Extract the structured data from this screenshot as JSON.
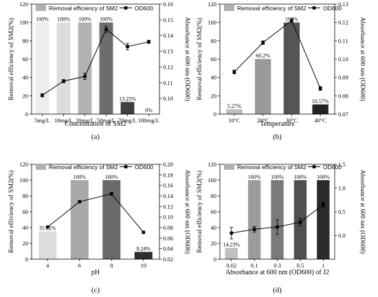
{
  "chart_data": [
    {
      "panel_label": "(a)",
      "type": "bar",
      "overlay_type": "line",
      "xlabel": "Concentration of SM2",
      "ylabel": "Removal efficiency of SM2(%)",
      "y2label": "Absorbance at 600 nm (OD600)",
      "categories": [
        "5mg/L",
        "10mg/L",
        "20mg/L",
        "50mg/L",
        "70mg/L",
        "100mg/L"
      ],
      "ylim": [
        0,
        120
      ],
      "yticks": [
        "0",
        "20",
        "40",
        "60",
        "80",
        "100",
        "120"
      ],
      "y2lim": [
        0.09,
        0.16
      ],
      "y2ticks": [
        "0.10",
        "0.11",
        "0.12",
        "0.13",
        "0.14",
        "0.15",
        "0.16"
      ],
      "legend": {
        "bar": "Removal efficiency of SM2",
        "line": "OD600",
        "position": "top"
      },
      "series": [
        {
          "kind": "bar",
          "values": [
            100,
            100,
            100,
            100,
            13.25,
            0
          ],
          "colors": [
            "#ededed",
            "#dddddd",
            "#b3b3b3",
            "#6d6d6d",
            "#404040",
            "#303030"
          ]
        },
        {
          "kind": "line",
          "name": "OD600",
          "values": [
            0.102,
            0.111,
            0.114,
            0.144,
            0.133,
            0.136
          ],
          "errors": [
            0.001,
            0.001,
            0.002,
            0.002,
            0.002,
            0.001
          ]
        }
      ],
      "data_labels": [
        "100%",
        "100%",
        "100%",
        "100%",
        "13.25%",
        "0%"
      ]
    },
    {
      "panel_label": "(b)",
      "type": "bar",
      "overlay_type": "line",
      "xlabel": "Temperature",
      "ylabel": "Removal efficiency of SM2(%)",
      "y2label": "Absorbance at 600 nm (OD600)",
      "categories": [
        "10°C",
        "20°C",
        "30°C",
        "40°C"
      ],
      "ylim": [
        0,
        120
      ],
      "yticks": [
        "0",
        "20",
        "40",
        "60",
        "80",
        "100",
        "120"
      ],
      "y2lim": [
        0.07,
        0.13
      ],
      "y2ticks": [
        "0.07",
        "0.08",
        "0.09",
        "0.10",
        "0.11",
        "0.12",
        "0.13"
      ],
      "legend": {
        "bar": "Removal efficiency of SM2",
        "line": "OD600",
        "position": "top"
      },
      "series": [
        {
          "kind": "bar",
          "values": [
            5.27,
            60.2,
            100,
            10.57
          ],
          "colors": [
            "#bdbdbd",
            "#9a9a9a",
            "#555555",
            "#222222"
          ]
        },
        {
          "kind": "line",
          "name": "OD600",
          "values": [
            0.093,
            0.109,
            0.121,
            0.084
          ],
          "errors": [
            0.001,
            0.001,
            0.001,
            0.001
          ]
        }
      ],
      "data_labels": [
        "5.27%",
        "60.2%",
        "100%",
        "10.57%"
      ]
    },
    {
      "panel_label": "(c)",
      "type": "bar",
      "overlay_type": "line",
      "xlabel": "pH",
      "ylabel": "Removal effiviency of SM2(%)",
      "y2label": "Absorbance at 600 nm (OD600)",
      "categories": [
        "4",
        "6",
        "8",
        "10"
      ],
      "ylim": [
        0,
        120
      ],
      "yticks": [
        "0",
        "20",
        "40",
        "60",
        "80",
        "100",
        "120"
      ],
      "y2lim": [
        0.02,
        0.2
      ],
      "y2ticks": [
        "0.02",
        "0.04",
        "0.06",
        "0.08",
        "0.10",
        "0.12",
        "0.14",
        "0.16",
        "0.18",
        "0.20"
      ],
      "legend": {
        "bar": "Removal efficiency of SM2",
        "line": "OD600",
        "position": "top"
      },
      "series": [
        {
          "kind": "bar",
          "values": [
            35.12,
            100,
            100,
            9.24
          ],
          "colors": [
            "#dcdcdc",
            "#a8a8a8",
            "#6a6a6a",
            "#2e2e2e"
          ]
        },
        {
          "kind": "line",
          "name": "OD600",
          "values": [
            0.081,
            0.129,
            0.144,
            0.071
          ],
          "errors": [
            0.001,
            0.001,
            0.003,
            0.001
          ]
        }
      ],
      "data_labels": [
        "35.12%",
        "100%",
        "100%",
        "9.24%"
      ]
    },
    {
      "panel_label": "(d)",
      "type": "bar",
      "overlay_type": "line",
      "xlabel": "Absorbance at 600 nm (OD600) of J2",
      "ylabel": "Removal efficiency of SM2(%)",
      "y2label": "Absorbance at 600 nm (OD600)",
      "categories": [
        "0.02",
        "0.1",
        "0.3",
        "0.5",
        "1"
      ],
      "ylim": [
        0,
        120
      ],
      "yticks": [
        "0",
        "20",
        "40",
        "60",
        "80",
        "100",
        "120"
      ],
      "y2lim": [
        -0.5,
        1.5
      ],
      "y2ticks": [
        "0.0",
        "0.5",
        "1.0",
        "1.5"
      ],
      "legend": {
        "bar": "Removal efficiency of SM2",
        "line": "OD600",
        "position": "top"
      },
      "series": [
        {
          "kind": "bar",
          "values": [
            14.23,
            100,
            100,
            100,
            100
          ],
          "colors": [
            "#bfbfbf",
            "#9c9c9c",
            "#7a7a7a",
            "#505050",
            "#2c2c2c"
          ]
        },
        {
          "kind": "line",
          "name": "OD600",
          "values": [
            0.05,
            0.13,
            0.18,
            0.28,
            0.65
          ],
          "errors": [
            0.12,
            0.06,
            0.15,
            0.08,
            0.05
          ]
        }
      ],
      "data_labels": [
        "14.23%",
        "100%",
        "100%",
        "100%",
        "100%"
      ]
    }
  ]
}
